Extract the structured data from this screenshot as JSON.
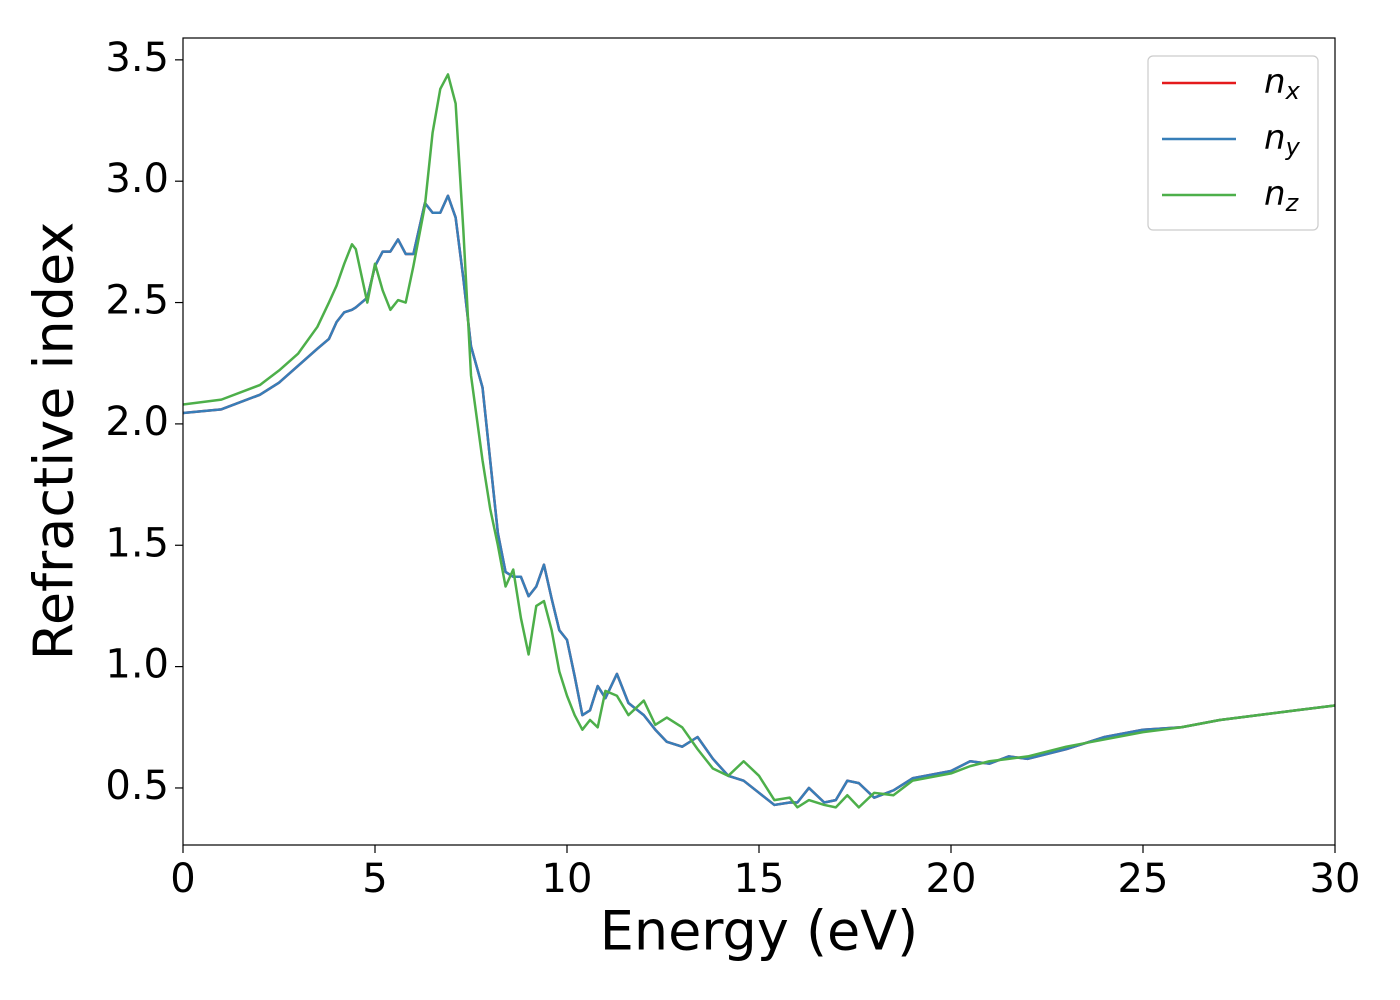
{
  "chart_data": {
    "type": "line",
    "xlabel": "Energy (eV)",
    "ylabel": "Refractive index",
    "x": [
      0,
      1,
      2,
      2.5,
      3,
      3.5,
      3.8,
      4,
      4.2,
      4.4,
      4.5,
      4.8,
      5,
      5.2,
      5.4,
      5.6,
      5.8,
      6,
      6.3,
      6.5,
      6.7,
      6.9,
      7.1,
      7.3,
      7.5,
      7.8,
      8,
      8.2,
      8.4,
      8.6,
      8.8,
      9,
      9.2,
      9.4,
      9.6,
      9.8,
      10,
      10.2,
      10.4,
      10.6,
      10.8,
      11,
      11.3,
      11.6,
      12,
      12.3,
      12.6,
      13,
      13.4,
      13.8,
      14.2,
      14.6,
      15,
      15.4,
      15.8,
      16,
      16.3,
      16.7,
      17,
      17.3,
      17.6,
      18,
      18.5,
      19,
      20,
      20.5,
      21,
      21.5,
      22,
      23,
      24,
      25,
      26,
      27,
      28,
      29,
      30
    ],
    "series": [
      {
        "name": "nx",
        "color": "#e41a1c",
        "values": [
          2.045,
          2.06,
          2.12,
          2.17,
          2.24,
          2.31,
          2.35,
          2.42,
          2.46,
          2.47,
          2.48,
          2.52,
          2.65,
          2.71,
          2.71,
          2.76,
          2.7,
          2.7,
          2.91,
          2.87,
          2.87,
          2.94,
          2.85,
          2.6,
          2.32,
          2.15,
          1.85,
          1.55,
          1.39,
          1.37,
          1.37,
          1.29,
          1.33,
          1.42,
          1.28,
          1.15,
          1.11,
          0.96,
          0.8,
          0.82,
          0.92,
          0.87,
          0.97,
          0.85,
          0.8,
          0.74,
          0.69,
          0.67,
          0.71,
          0.62,
          0.55,
          0.53,
          0.48,
          0.43,
          0.44,
          0.44,
          0.5,
          0.44,
          0.45,
          0.53,
          0.52,
          0.46,
          0.49,
          0.54,
          0.57,
          0.61,
          0.6,
          0.63,
          0.62,
          0.66,
          0.71,
          0.74,
          0.75,
          0.78,
          0.8,
          0.82,
          0.84
        ]
      },
      {
        "name": "ny",
        "color": "#377eb8",
        "values": [
          2.045,
          2.06,
          2.12,
          2.17,
          2.24,
          2.31,
          2.35,
          2.42,
          2.46,
          2.47,
          2.48,
          2.52,
          2.65,
          2.71,
          2.71,
          2.76,
          2.7,
          2.7,
          2.91,
          2.87,
          2.87,
          2.94,
          2.85,
          2.6,
          2.32,
          2.15,
          1.85,
          1.55,
          1.39,
          1.37,
          1.37,
          1.29,
          1.33,
          1.42,
          1.28,
          1.15,
          1.11,
          0.96,
          0.8,
          0.82,
          0.92,
          0.87,
          0.97,
          0.85,
          0.8,
          0.74,
          0.69,
          0.67,
          0.71,
          0.62,
          0.55,
          0.53,
          0.48,
          0.43,
          0.44,
          0.44,
          0.5,
          0.44,
          0.45,
          0.53,
          0.52,
          0.46,
          0.49,
          0.54,
          0.57,
          0.61,
          0.6,
          0.63,
          0.62,
          0.66,
          0.71,
          0.74,
          0.75,
          0.78,
          0.8,
          0.82,
          0.84
        ]
      },
      {
        "name": "nz",
        "color": "#4daf4a",
        "values": [
          2.08,
          2.1,
          2.16,
          2.22,
          2.29,
          2.4,
          2.5,
          2.57,
          2.66,
          2.74,
          2.72,
          2.5,
          2.66,
          2.55,
          2.47,
          2.51,
          2.5,
          2.65,
          2.9,
          3.2,
          3.38,
          3.44,
          3.32,
          2.8,
          2.2,
          1.85,
          1.65,
          1.5,
          1.33,
          1.4,
          1.2,
          1.05,
          1.25,
          1.27,
          1.15,
          0.98,
          0.88,
          0.8,
          0.74,
          0.78,
          0.75,
          0.9,
          0.88,
          0.8,
          0.86,
          0.76,
          0.79,
          0.75,
          0.66,
          0.58,
          0.55,
          0.61,
          0.55,
          0.45,
          0.46,
          0.42,
          0.45,
          0.43,
          0.42,
          0.47,
          0.42,
          0.48,
          0.47,
          0.53,
          0.56,
          0.59,
          0.61,
          0.62,
          0.63,
          0.67,
          0.7,
          0.73,
          0.75,
          0.78,
          0.8,
          0.82,
          0.84
        ]
      }
    ],
    "xlim": [
      0,
      30
    ],
    "ylim": [
      0.265,
      3.59
    ],
    "xticks": [
      0,
      5,
      10,
      15,
      20,
      25,
      30
    ],
    "yticks": [
      0.5,
      {
        "value": 1.0,
        "label": "1.0"
      },
      1.5,
      {
        "value": 2.0,
        "label": "2.0"
      },
      2.5,
      {
        "value": 3.0,
        "label": "3.0"
      },
      3.5
    ],
    "legend": "upper right"
  }
}
